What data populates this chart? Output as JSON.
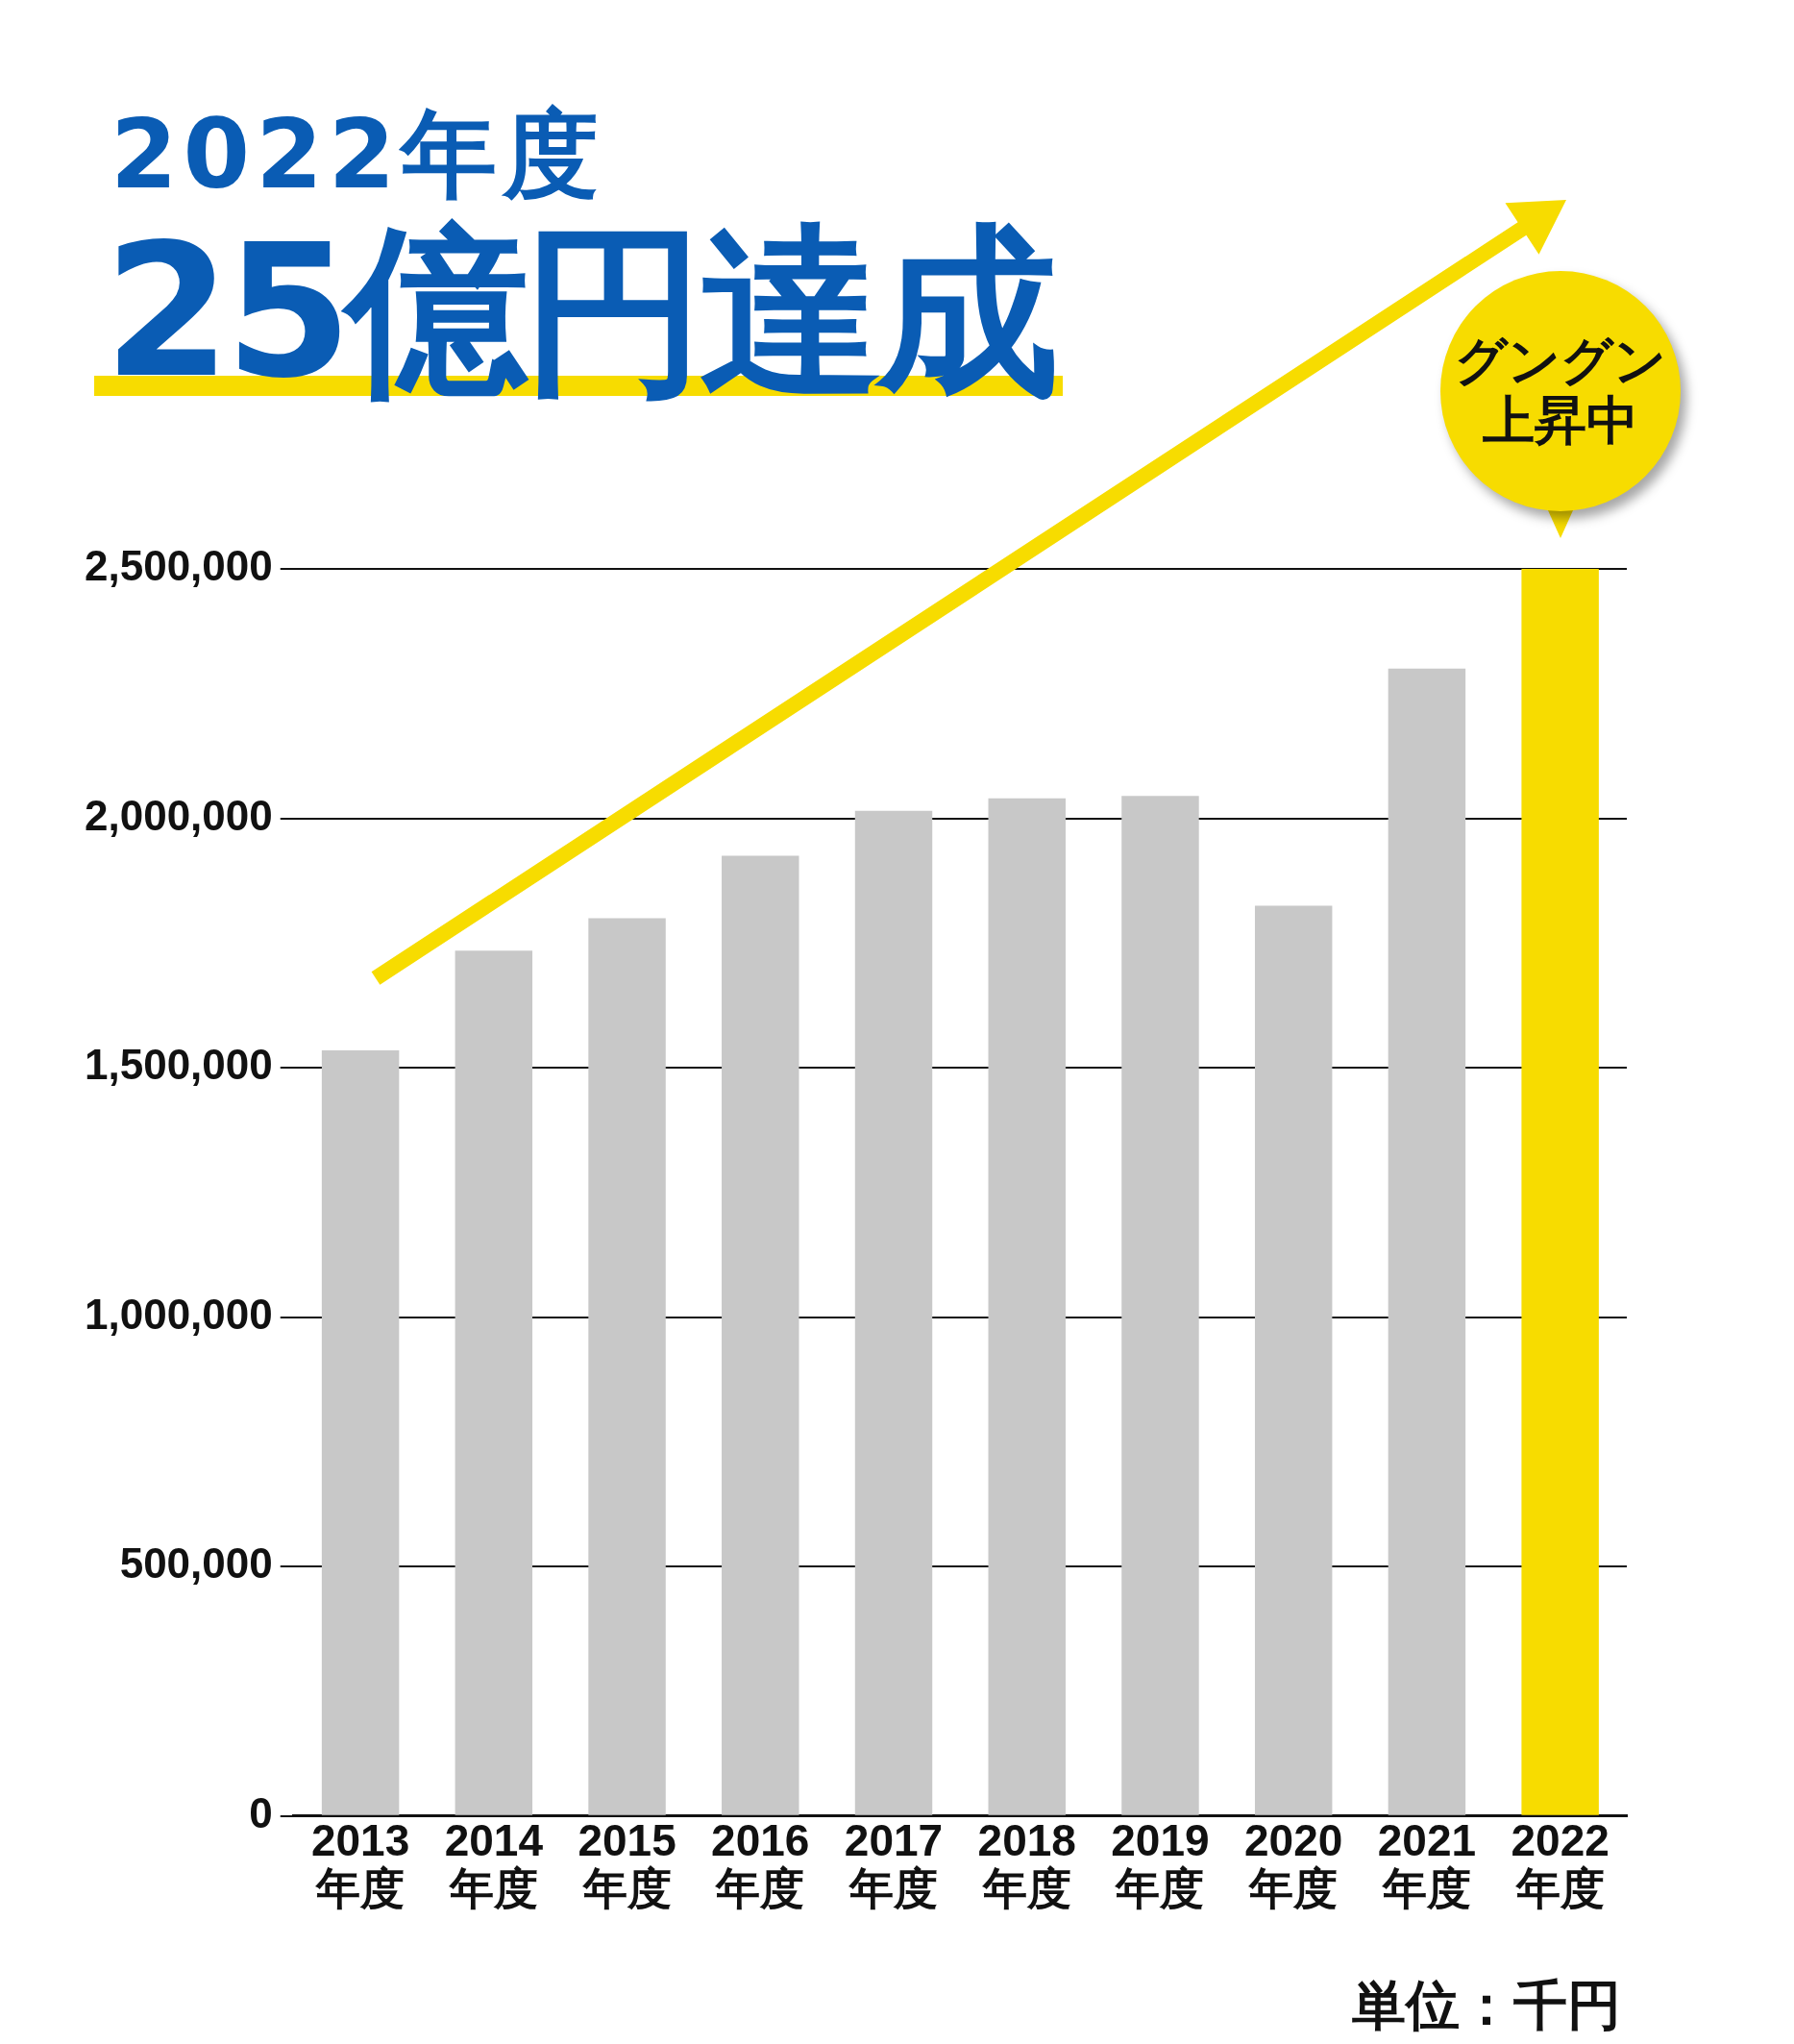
{
  "chart_data": {
    "type": "bar",
    "title": "2022年度",
    "subtitle": "25億円達成",
    "categories": [
      "2013 年度",
      "2014 年度",
      "2015 年度",
      "2016 年度",
      "2017 年度",
      "2018 年度",
      "2019 年度",
      "2020 年度",
      "2021 年度",
      "2022 年度"
    ],
    "values": [
      1535000,
      1735000,
      1800000,
      1925000,
      2015000,
      2040000,
      2045000,
      1825000,
      2300000,
      2500000
    ],
    "colors": [
      "#c8c8c8",
      "#c8c8c8",
      "#c8c8c8",
      "#c8c8c8",
      "#c8c8c8",
      "#c8c8c8",
      "#c8c8c8",
      "#c8c8c8",
      "#c8c8c8",
      "#f7dc00"
    ],
    "ylim": [
      0,
      2500000
    ],
    "yticks": [
      {
        "value": 0,
        "label": "0"
      },
      {
        "value": 500000,
        "label": "500,000"
      },
      {
        "value": 1000000,
        "label": "1,000,000"
      },
      {
        "value": 1500000,
        "label": "1,500,000"
      },
      {
        "value": 2000000,
        "label": "2,000,000"
      },
      {
        "value": 2500000,
        "label": "2,500,000"
      }
    ],
    "grid": "y",
    "annotations": [
      {
        "text": "グングン上昇中",
        "x": "2022 年度",
        "y": 2500000
      },
      "単位：千円"
    ]
  }
}
